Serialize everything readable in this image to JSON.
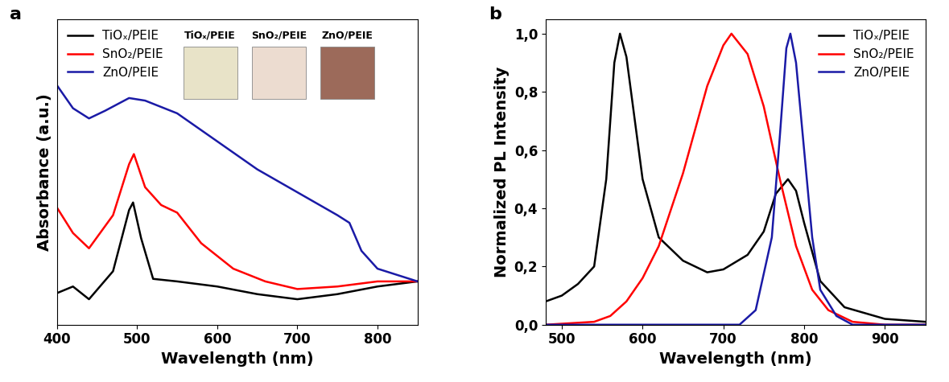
{
  "chart_data": [
    {
      "type": "line",
      "label": "a",
      "x_label": "Wavelength (nm)",
      "y_label": "Absorbance (a.u.)",
      "xlim": [
        400,
        850
      ],
      "xticks": [
        400,
        500,
        600,
        700,
        800
      ],
      "ylim": [
        0,
        1.2
      ],
      "yticks": [],
      "tick_labels": "x",
      "legend": "upper left",
      "insets": [
        {
          "label": "TiOₓ/PEIE",
          "color": "#e8e3c8"
        },
        {
          "label": "SnO₂/PEIE",
          "color": "#ecdcd0"
        },
        {
          "label": "ZnO/PEIE",
          "color": "#9c6a5a"
        }
      ],
      "series": [
        {
          "name": "TiOₓ/PEIE",
          "color": "#000000",
          "x": [
            400,
            420,
            440,
            470,
            490,
            495,
            505,
            520,
            550,
            600,
            650,
            700,
            750,
            800,
            850
          ],
          "values": [
            0.124,
            0.15,
            0.1,
            0.21,
            0.45,
            0.48,
            0.34,
            0.18,
            0.17,
            0.15,
            0.12,
            0.1,
            0.12,
            0.15,
            0.17
          ]
        },
        {
          "name": "SnO₂/PEIE",
          "color": "#ff0000",
          "x": [
            400,
            420,
            440,
            470,
            490,
            496,
            510,
            530,
            550,
            580,
            620,
            660,
            700,
            750,
            800,
            850
          ],
          "values": [
            0.46,
            0.36,
            0.3,
            0.43,
            0.63,
            0.67,
            0.54,
            0.47,
            0.44,
            0.32,
            0.22,
            0.17,
            0.14,
            0.15,
            0.17,
            0.17
          ]
        },
        {
          "name": "ZnO/PEIE",
          "color": "#1a1aa6",
          "x": [
            400,
            420,
            440,
            460,
            490,
            510,
            550,
            600,
            650,
            700,
            750,
            765,
            780,
            800,
            830,
            850
          ],
          "values": [
            0.94,
            0.85,
            0.81,
            0.84,
            0.89,
            0.88,
            0.83,
            0.72,
            0.61,
            0.52,
            0.43,
            0.4,
            0.29,
            0.22,
            0.19,
            0.17
          ]
        }
      ]
    },
    {
      "type": "line",
      "label": "b",
      "x_label": "Wavelength (nm)",
      "y_label": "Normalized PL Intensity",
      "xlim": [
        480,
        950
      ],
      "xticks": [
        500,
        600,
        700,
        800,
        900
      ],
      "ylim": [
        0,
        1.05
      ],
      "yticks": [
        {
          "value": 0.0,
          "label": "0,0"
        },
        {
          "value": 0.2,
          "label": "0,2"
        },
        {
          "value": 0.4,
          "label": "0,4"
        },
        {
          "value": 0.6,
          "label": "0,6"
        },
        {
          "value": 0.8,
          "label": "0,8"
        },
        {
          "value": 1.0,
          "label": "1,0"
        }
      ],
      "legend": "upper right",
      "series": [
        {
          "name": "TiOₓ/PEIE",
          "color": "#000000",
          "x": [
            480,
            500,
            520,
            540,
            555,
            565,
            572,
            580,
            600,
            620,
            650,
            680,
            700,
            730,
            750,
            765,
            780,
            790,
            800,
            820,
            850,
            900,
            950
          ],
          "values": [
            0.08,
            0.1,
            0.14,
            0.2,
            0.5,
            0.9,
            1.0,
            0.92,
            0.5,
            0.3,
            0.22,
            0.18,
            0.19,
            0.24,
            0.32,
            0.45,
            0.5,
            0.46,
            0.35,
            0.15,
            0.06,
            0.02,
            0.01
          ]
        },
        {
          "name": "SnO₂/PEIE",
          "color": "#ff0000",
          "x": [
            480,
            540,
            560,
            580,
            600,
            620,
            650,
            680,
            700,
            710,
            730,
            750,
            770,
            790,
            810,
            830,
            860,
            900,
            950
          ],
          "values": [
            0.0,
            0.01,
            0.03,
            0.08,
            0.16,
            0.27,
            0.52,
            0.82,
            0.96,
            1.0,
            0.93,
            0.75,
            0.5,
            0.27,
            0.12,
            0.05,
            0.01,
            0.0,
            0.0
          ]
        },
        {
          "name": "ZnO/PEIE",
          "color": "#1a1aa6",
          "x": [
            480,
            720,
            740,
            760,
            770,
            778,
            783,
            790,
            800,
            810,
            820,
            840,
            860,
            950
          ],
          "values": [
            0.0,
            0.0,
            0.05,
            0.3,
            0.65,
            0.95,
            1.0,
            0.9,
            0.6,
            0.3,
            0.12,
            0.03,
            0.0,
            0.0
          ]
        }
      ]
    }
  ]
}
